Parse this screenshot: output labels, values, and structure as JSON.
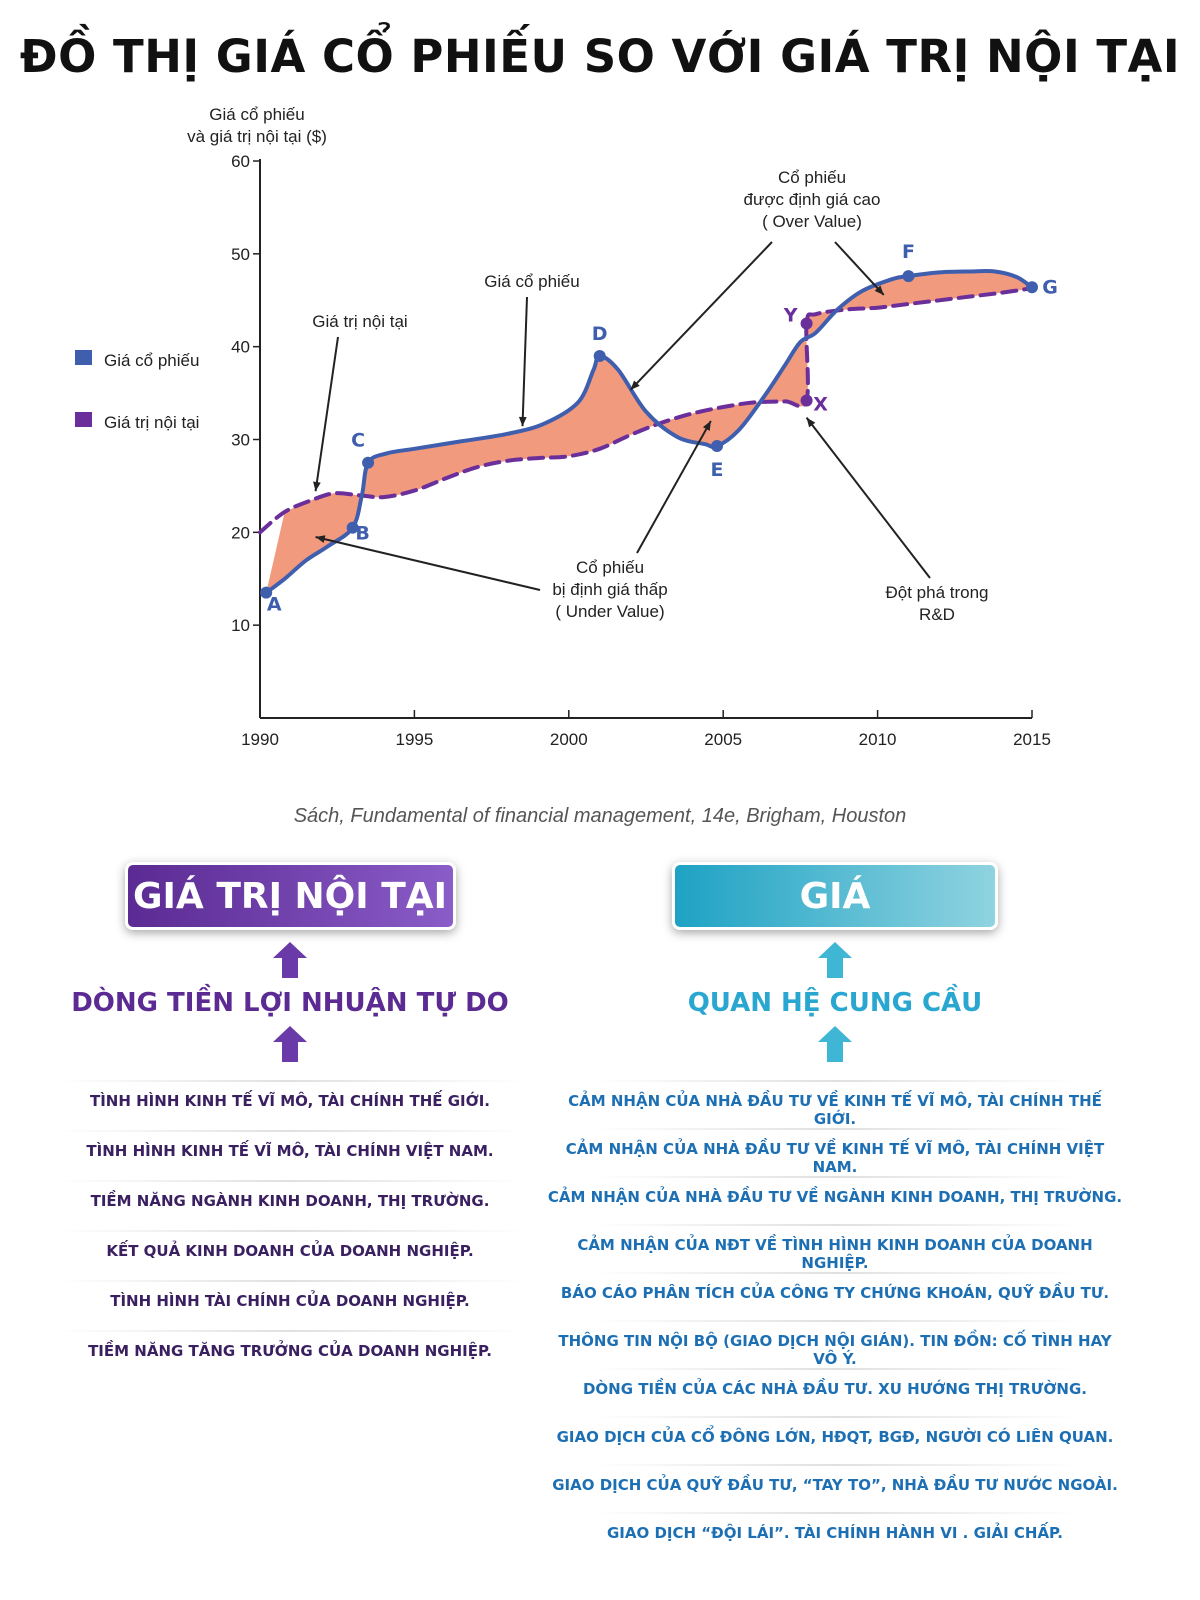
{
  "title": "ĐỒ THỊ GIÁ CỔ PHIẾU SO VỚI GIÁ TRỊ NỘI TẠI",
  "source": "Sách, Fundamental of financial management, 14e, Brigham, Houston",
  "colors": {
    "price": "#3f5fae",
    "intrinsic": "#6a2f9a",
    "fill": "#f29a7e",
    "left_accent": "#5b2a93",
    "right_accent": "#2aa7d0"
  },
  "chart_data": {
    "type": "line",
    "ylabel": "Giá cổ phiếu\nvà giá trị nội tại ($)",
    "xlim": [
      1990,
      2015
    ],
    "ylim": [
      0,
      60
    ],
    "xticks": [
      1990,
      1995,
      2000,
      2005,
      2010,
      2015
    ],
    "yticks": [
      10,
      20,
      30,
      40,
      50,
      60
    ],
    "legend_position": "left",
    "series": [
      {
        "name": "Giá cổ phiếu",
        "color": "#3f5fae",
        "style": "solid",
        "x": [
          1990.2,
          1990.8,
          1991.5,
          1992.2,
          1993.0,
          1993.3,
          1993.5,
          1994.1,
          1995.0,
          1996.5,
          1998.0,
          1999.2,
          2000.3,
          2000.8,
          2001.0,
          2001.6,
          2002.5,
          2003.5,
          2004.4,
          2004.8,
          2005.5,
          2006.3,
          2007.0,
          2007.5,
          2008.0,
          2008.7,
          2009.5,
          2010.5,
          2011.0,
          2012.0,
          2013.0,
          2013.8,
          2014.5,
          2015.0
        ],
        "y": [
          13.5,
          15.0,
          17.0,
          18.5,
          20.5,
          24.0,
          27.5,
          28.5,
          29.0,
          29.8,
          30.6,
          31.7,
          34.0,
          37.5,
          39.0,
          37.5,
          33.0,
          30.3,
          29.5,
          29.3,
          31.0,
          34.5,
          38.0,
          40.5,
          41.5,
          44.0,
          46.0,
          47.3,
          47.6,
          48.0,
          48.1,
          48.1,
          47.5,
          46.4
        ]
      },
      {
        "name": "Giá trị nội tại",
        "color": "#6a2f9a",
        "style": "dashed",
        "x": [
          1990.0,
          1990.8,
          1991.7,
          1992.4,
          1993.2,
          1994.0,
          1995.0,
          1996.0,
          1997.0,
          1998.0,
          1999.0,
          2000.0,
          2001.0,
          2002.0,
          2003.0,
          2004.0,
          2005.0,
          2006.0,
          2007.0,
          2007.7,
          2007.7,
          2008.0,
          2009.0,
          2010.0,
          2011.0,
          2012.0,
          2013.0,
          2014.0,
          2015.0
        ],
        "y": [
          20.0,
          22.2,
          23.5,
          24.2,
          24.0,
          23.8,
          24.5,
          25.8,
          27.0,
          27.7,
          28.0,
          28.2,
          29.0,
          30.5,
          31.8,
          32.8,
          33.5,
          34.0,
          34.1,
          34.2,
          42.5,
          43.5,
          44.0,
          44.2,
          44.6,
          45.0,
          45.4,
          45.8,
          46.3
        ]
      }
    ],
    "points": [
      {
        "label": "A",
        "x": 1990.2,
        "y": 13.5,
        "series": "price"
      },
      {
        "label": "B",
        "x": 1993.0,
        "y": 20.5,
        "series": "price"
      },
      {
        "label": "C",
        "x": 1993.5,
        "y": 27.5,
        "series": "price"
      },
      {
        "label": "D",
        "x": 2001.0,
        "y": 39.0,
        "series": "price"
      },
      {
        "label": "E",
        "x": 2004.8,
        "y": 29.3,
        "series": "price"
      },
      {
        "label": "F",
        "x": 2011.0,
        "y": 47.6,
        "series": "price"
      },
      {
        "label": "G",
        "x": 2015.0,
        "y": 46.4,
        "series": "price"
      },
      {
        "label": "Y",
        "x": 2007.7,
        "y": 42.5,
        "series": "intrinsic"
      },
      {
        "label": "X",
        "x": 2007.7,
        "y": 34.2,
        "series": "intrinsic"
      }
    ],
    "annotations": [
      {
        "text": "Giá trị nội tại",
        "target_x": 1991.8,
        "target_y": 24.0
      },
      {
        "text": "Giá cổ phiếu",
        "target_x": 1998.5,
        "target_y": 31.0
      },
      {
        "text": "Cổ phiếu\nđược định giá cao\n( Over Value)",
        "targets": [
          [
            2002.0,
            36.0
          ],
          [
            2010.2,
            46.0
          ]
        ]
      },
      {
        "text": "Cổ phiếu\nbị định giá thấp\n( Under Value)",
        "targets": [
          [
            1991.8,
            19.5
          ],
          [
            2004.6,
            32.0
          ]
        ]
      },
      {
        "text": "Đột phá trong\nR&D",
        "target_x": 2007.7,
        "target_y": 33.0
      }
    ]
  },
  "left": {
    "header": "GIÁ TRỊ NỘI TẠI",
    "sub": "DÒNG TIỀN LỢI NHUẬN TỰ DO",
    "items": [
      "TÌNH HÌNH KINH TẾ VĨ MÔ, TÀI CHÍNH THẾ GIỚI.",
      "TÌNH HÌNH KINH TẾ VĨ MÔ, TÀI CHÍNH VIỆT NAM.",
      "TIỀM NĂNG NGÀNH KINH DOANH, THỊ TRƯỜNG.",
      "KẾT QUẢ KINH DOANH CỦA DOANH NGHIỆP.",
      "TÌNH HÌNH TÀI CHÍNH CỦA DOANH NGHIỆP.",
      "TIỀM NĂNG TĂNG TRƯỞNG CỦA DOANH NGHIỆP."
    ]
  },
  "right": {
    "header": "GIÁ",
    "sub": "QUAN HỆ CUNG CẦU",
    "items": [
      "CẢM NHẬN CỦA NHÀ ĐẦU TƯ VỀ  KINH TẾ VĨ MÔ, TÀI CHÍNH THẾ GIỚI.",
      "CẢM NHẬN CỦA NHÀ ĐẦU TƯ VỀ  KINH TẾ VĨ MÔ, TÀI CHÍNH VIỆT NAM.",
      "CẢM NHẬN CỦA NHÀ ĐẦU TƯ VỀ NGÀNH KINH DOANH, THỊ TRƯỜNG.",
      "CẢM NHẬN CỦA NĐT VỀ TÌNH HÌNH KINH DOANH CỦA DOANH NGHIỆP.",
      "BÁO CÁO PHÂN TÍCH CỦA CÔNG TY CHỨNG KHOÁN, QUỸ ĐẦU TƯ.",
      "THÔNG TIN NỘI BỘ (GIAO DỊCH NỘI GIÁN). TIN ĐỒN: CỐ TÌNH HAY VÔ Ý.",
      "DÒNG TIỀN CỦA CÁC NHÀ ĐẦU TƯ. XU HƯỚNG THỊ TRƯỜNG.",
      "GIAO DỊCH CỦA CỔ ĐÔNG LỚN, HĐQT, BGĐ, NGƯỜI CÓ LIÊN QUAN.",
      "GIAO DỊCH CỦA QUỸ ĐẦU TƯ, “TAY TO”, NHÀ ĐẦU TƯ NƯỚC NGOÀI.",
      "GIAO DỊCH “ĐỘI LÁI”. TÀI CHÍNH HÀNH VI . GIẢI CHẤP."
    ]
  }
}
